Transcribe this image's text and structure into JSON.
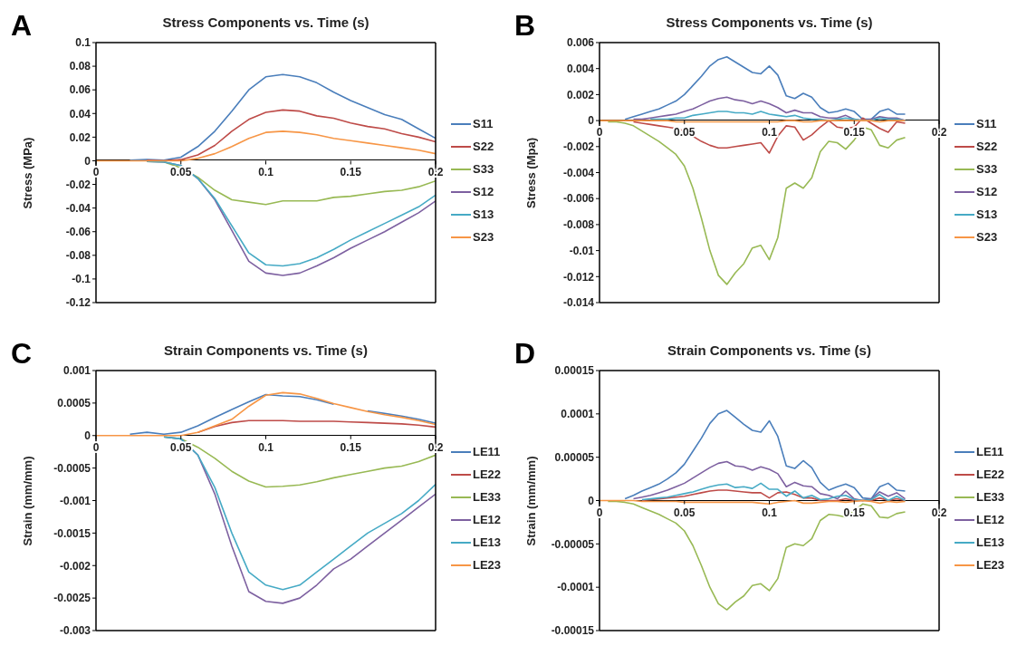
{
  "chart_data": [
    {
      "type": "line",
      "title": "Stress Components vs. Time (s)",
      "ylabel": "Stress (MPa)",
      "annotations": [
        "A"
      ],
      "legend": "right",
      "xlim": [
        0,
        0.2
      ],
      "xticks": [
        0,
        0.05,
        0.1,
        0.15,
        0.2
      ],
      "ylim": [
        -0.12,
        0.1
      ],
      "yticks": [
        -0.12,
        -0.1,
        -0.08,
        -0.06,
        -0.04,
        -0.02,
        0,
        0.02,
        0.04,
        0.06,
        0.08,
        0.1
      ],
      "x": [
        0,
        0.01,
        0.02,
        0.03,
        0.04,
        0.05,
        0.06,
        0.07,
        0.08,
        0.09,
        0.1,
        0.11,
        0.12,
        0.13,
        0.14,
        0.15,
        0.16,
        0.17,
        0.18,
        0.19,
        0.2
      ],
      "series": [
        {
          "name": "S11",
          "color": "#4a7ebb",
          "values": [
            null,
            null,
            0.0005,
            0.001,
            0.0005,
            0.003,
            0.012,
            0.025,
            0.042,
            0.06,
            0.071,
            0.073,
            0.071,
            0.066,
            0.058,
            0.051,
            0.045,
            0.039,
            0.035,
            0.027,
            0.019
          ]
        },
        {
          "name": "S22",
          "color": "#be4b48",
          "values": [
            null,
            null,
            null,
            0.0005,
            0,
            0.001,
            0.005,
            0.013,
            0.025,
            0.035,
            0.041,
            0.043,
            0.042,
            0.038,
            0.036,
            0.032,
            0.029,
            0.027,
            0.023,
            0.02,
            0.016
          ]
        },
        {
          "name": "S33",
          "color": "#98b954",
          "values": [
            null,
            null,
            null,
            -0.0005,
            -0.001,
            -0.006,
            -0.014,
            -0.025,
            -0.033,
            -0.035,
            -0.037,
            -0.034,
            -0.034,
            -0.034,
            -0.031,
            -0.03,
            -0.028,
            -0.026,
            -0.025,
            -0.022,
            -0.017
          ]
        },
        {
          "name": "S12",
          "color": "#7d60a0",
          "values": [
            null,
            null,
            null,
            -0.0005,
            -0.001,
            -0.004,
            -0.015,
            -0.033,
            -0.059,
            -0.085,
            -0.095,
            -0.097,
            -0.095,
            -0.089,
            -0.082,
            -0.074,
            -0.067,
            -0.06,
            -0.052,
            -0.044,
            -0.034
          ]
        },
        {
          "name": "S13",
          "color": "#46aac5",
          "values": [
            null,
            null,
            null,
            -0.0005,
            -0.001,
            -0.004,
            -0.015,
            -0.032,
            -0.055,
            -0.078,
            -0.088,
            -0.089,
            -0.087,
            -0.082,
            -0.075,
            -0.067,
            -0.06,
            -0.053,
            -0.046,
            -0.039,
            -0.029
          ]
        },
        {
          "name": "S23",
          "color": "#f79646",
          "values": [
            0,
            0,
            0,
            0,
            0,
            0,
            0.002,
            0.006,
            0.012,
            0.019,
            0.024,
            0.025,
            0.024,
            0.022,
            0.019,
            0.017,
            0.015,
            0.013,
            0.011,
            0.009,
            0.006
          ]
        }
      ]
    },
    {
      "type": "line",
      "title": "Stress Components vs. Time (s)",
      "ylabel": "Stress (Mpa)",
      "annotations": [
        "B"
      ],
      "legend": "right",
      "xlim": [
        0,
        0.2
      ],
      "xticks": [
        0,
        0.05,
        0.1,
        0.15,
        0.2
      ],
      "ylim": [
        -0.014,
        0.006
      ],
      "yticks": [
        -0.014,
        -0.012,
        -0.01,
        -0.008,
        -0.006,
        -0.004,
        -0.002,
        0,
        0.002,
        0.004,
        0.006
      ],
      "x": [
        0,
        0.005,
        0.01,
        0.015,
        0.02,
        0.025,
        0.03,
        0.035,
        0.04,
        0.045,
        0.05,
        0.055,
        0.06,
        0.065,
        0.07,
        0.075,
        0.08,
        0.085,
        0.09,
        0.095,
        0.1,
        0.105,
        0.11,
        0.115,
        0.12,
        0.125,
        0.13,
        0.135,
        0.14,
        0.145,
        0.15,
        0.155,
        0.16,
        0.165,
        0.17,
        0.175,
        0.18
      ],
      "series": [
        {
          "name": "S11",
          "color": "#4a7ebb",
          "values": [
            null,
            null,
            null,
            0.0001,
            0.0003,
            0.0005,
            0.0007,
            0.0009,
            0.0012,
            0.0015,
            0.002,
            0.0027,
            0.0034,
            0.0042,
            0.0047,
            0.0049,
            0.0045,
            0.0041,
            0.0037,
            0.0036,
            0.0042,
            0.0035,
            0.0019,
            0.0017,
            0.0021,
            0.0018,
            0.001,
            0.0006,
            0.0007,
            0.0009,
            0.0007,
            0.0001,
            0.0001,
            0.0007,
            0.0009,
            0.0005,
            0.0005
          ]
        },
        {
          "name": "S22",
          "color": "#be4b48",
          "values": [
            null,
            null,
            null,
            null,
            -0.0001,
            -0.0002,
            -0.0003,
            -0.0004,
            -0.0005,
            -0.0006,
            -0.0008,
            -0.0012,
            -0.0016,
            -0.0019,
            -0.0021,
            -0.0021,
            -0.002,
            -0.0019,
            -0.0018,
            -0.0017,
            -0.0025,
            -0.0012,
            -0.0004,
            -0.0005,
            -0.0015,
            -0.0011,
            -0.0005,
            0,
            -0.0005,
            -0.0006,
            -0.0005,
            0.0002,
            -0.0002,
            -0.0006,
            -0.0009,
            -0.0001,
            -0.0002
          ]
        },
        {
          "name": "S33",
          "color": "#98b954",
          "values": [
            null,
            -0.0001,
            -0.0001,
            -0.0002,
            -0.0004,
            -0.0008,
            -0.0012,
            -0.0016,
            -0.0021,
            -0.0026,
            -0.0035,
            -0.0052,
            -0.0075,
            -0.01,
            -0.0119,
            -0.0126,
            -0.0117,
            -0.011,
            -0.0098,
            -0.0096,
            -0.0107,
            -0.009,
            -0.0052,
            -0.0048,
            -0.0052,
            -0.0044,
            -0.0024,
            -0.0016,
            -0.0017,
            -0.0022,
            -0.0015,
            -0.0005,
            -0.0007,
            -0.0019,
            -0.0021,
            -0.0015,
            -0.0013
          ]
        },
        {
          "name": "S12",
          "color": "#7d60a0",
          "values": [
            null,
            null,
            null,
            null,
            0.0001,
            0.0001,
            0.0002,
            0.0003,
            0.0004,
            0.0005,
            0.0007,
            0.0009,
            0.0012,
            0.0015,
            0.0017,
            0.0018,
            0.0016,
            0.0015,
            0.0013,
            0.0015,
            0.0013,
            0.001,
            0.0006,
            0.0008,
            0.0006,
            0.0006,
            0.0003,
            0.0002,
            0.0002,
            0.0004,
            0.0001,
            0,
            0.0001,
            0.0003,
            0.0002,
            0.0002,
            0
          ]
        },
        {
          "name": "S13",
          "color": "#46aac5",
          "values": [
            null,
            null,
            null,
            null,
            null,
            null,
            0.0001,
            0.0001,
            0.0001,
            0.0002,
            0.0002,
            0.0004,
            0.0005,
            0.0006,
            0.0007,
            0.0007,
            0.0006,
            0.0006,
            0.0005,
            0.0007,
            0.0005,
            0.0004,
            0.0003,
            0.0004,
            0.0002,
            0.0001,
            0.0001,
            0,
            0.0001,
            0.0002,
            0.0001,
            0,
            0,
            0.0002,
            0.0001,
            0.0001,
            0
          ]
        },
        {
          "name": "S23",
          "color": "#f79646",
          "values": [
            0,
            0,
            0,
            0,
            0,
            0,
            0,
            0,
            0,
            -0.0001,
            -0.0001,
            -0.0001,
            -0.0001,
            -0.0001,
            -0.0001,
            -0.0001,
            -0.0001,
            -0.0001,
            -0.0001,
            -0.0001,
            -0.0001,
            -0.0001,
            0,
            0,
            -0.0001,
            -0.0001,
            0,
            0,
            0,
            0,
            0,
            0,
            0,
            -0.0001,
            0,
            0,
            0
          ]
        }
      ]
    },
    {
      "type": "line",
      "title": "Strain Components vs. Time (s)",
      "ylabel": "Strain (mm/mm)",
      "annotations": [
        "C"
      ],
      "legend": "right",
      "xlim": [
        0,
        0.2
      ],
      "xticks": [
        0,
        0.05,
        0.1,
        0.15,
        0.2
      ],
      "ylim": [
        -0.003,
        0.001
      ],
      "yticks": [
        -0.003,
        -0.0025,
        -0.002,
        -0.0015,
        -0.001,
        -0.0005,
        0,
        0.0005,
        0.001
      ],
      "x": [
        0,
        0.01,
        0.02,
        0.03,
        0.04,
        0.05,
        0.06,
        0.07,
        0.08,
        0.09,
        0.1,
        0.11,
        0.12,
        0.13,
        0.14,
        0.15,
        0.16,
        0.17,
        0.18,
        0.19,
        0.2
      ],
      "series": [
        {
          "name": "LE11",
          "color": "#4a7ebb",
          "values": [
            null,
            null,
            2e-05,
            5e-05,
            2e-05,
            5e-05,
            0.00015,
            0.00028,
            0.0004,
            0.00052,
            0.00063,
            0.00061,
            0.0006,
            0.00055,
            0.00048,
            null,
            0.00038,
            0.00034,
            0.0003,
            0.00025,
            0.00019
          ]
        },
        {
          "name": "LE22",
          "color": "#be4b48",
          "values": [
            null,
            null,
            null,
            null,
            null,
            null,
            5e-05,
            0.00014,
            0.0002,
            0.00023,
            0.00023,
            0.00023,
            0.00022,
            0.00022,
            0.00022,
            0.00021,
            0.0002,
            0.00019,
            0.00018,
            0.00016,
            0.00013
          ]
        },
        {
          "name": "LE33",
          "color": "#98b954",
          "values": [
            null,
            null,
            null,
            null,
            -2e-05,
            -5e-05,
            -0.00018,
            -0.00035,
            -0.00055,
            -0.0007,
            -0.00079,
            -0.00078,
            -0.00076,
            -0.00071,
            -0.00065,
            -0.0006,
            -0.00055,
            -0.0005,
            -0.00047,
            -0.0004,
            -0.0003
          ]
        },
        {
          "name": "LE12",
          "color": "#7d60a0",
          "values": [
            null,
            null,
            null,
            null,
            -2e-05,
            -5e-05,
            -0.0003,
            -0.0009,
            -0.0017,
            -0.0024,
            -0.00255,
            -0.00258,
            -0.0025,
            -0.0023,
            -0.00205,
            -0.0019,
            -0.0017,
            -0.0015,
            -0.0013,
            -0.0011,
            -0.0009
          ]
        },
        {
          "name": "LE13",
          "color": "#46aac5",
          "values": [
            null,
            null,
            null,
            null,
            -2e-05,
            -5e-05,
            -0.0003,
            -0.0008,
            -0.0015,
            -0.0021,
            -0.0023,
            -0.00237,
            -0.0023,
            -0.0021,
            -0.0019,
            -0.0017,
            -0.0015,
            -0.00135,
            -0.0012,
            -0.001,
            -0.00075
          ]
        },
        {
          "name": "LE23",
          "color": "#f79646",
          "values": [
            0,
            0,
            0,
            0,
            0,
            0,
            5e-05,
            0.00015,
            0.00025,
            0.00045,
            0.00062,
            0.00066,
            0.00064,
            0.00057,
            0.00049,
            0.00043,
            0.00037,
            0.00032,
            0.00028,
            0.00023,
            0.00017
          ]
        }
      ]
    },
    {
      "type": "line",
      "title": "Strain Components vs. Time (s)",
      "ylabel": "Strain (mm/mm)",
      "annotations": [
        "D"
      ],
      "legend": "right",
      "xlim": [
        0,
        0.2
      ],
      "xticks": [
        0,
        0.05,
        0.1,
        0.15,
        0.2
      ],
      "ylim": [
        -0.00015,
        0.00015
      ],
      "yticks": [
        -0.00015,
        -0.0001,
        {
          "value": -5e-05,
          "label": "-0.00005"
        },
        0,
        {
          "value": 5e-05,
          "label": "0.00005"
        },
        0.0001,
        0.00015
      ],
      "x": [
        0,
        0.005,
        0.01,
        0.015,
        0.02,
        0.025,
        0.03,
        0.035,
        0.04,
        0.045,
        0.05,
        0.055,
        0.06,
        0.065,
        0.07,
        0.075,
        0.08,
        0.085,
        0.09,
        0.095,
        0.1,
        0.105,
        0.11,
        0.115,
        0.12,
        0.125,
        0.13,
        0.135,
        0.14,
        0.145,
        0.15,
        0.155,
        0.16,
        0.165,
        0.17,
        0.175,
        0.18
      ],
      "series": [
        {
          "name": "LE11",
          "color": "#4a7ebb",
          "values": [
            null,
            null,
            null,
            2e-06,
            6e-06,
            1.1e-05,
            1.5e-05,
            1.9e-05,
            2.5e-05,
            3.2e-05,
            4.2e-05,
            5.7e-05,
            7.2e-05,
            8.9e-05,
            0.0001,
            0.000104,
            9.6e-05,
            8.8e-05,
            8.1e-05,
            7.9e-05,
            9.2e-05,
            7.4e-05,
            4e-05,
            3.7e-05,
            4.6e-05,
            3.8e-05,
            2.1e-05,
            1.2e-05,
            1.6e-05,
            1.9e-05,
            1.5e-05,
            3e-06,
            2e-06,
            1.6e-05,
            2e-05,
            1.2e-05,
            1.1e-05
          ]
        },
        {
          "name": "LE22",
          "color": "#be4b48",
          "values": [
            null,
            null,
            null,
            null,
            null,
            0,
            1e-06,
            2e-06,
            3e-06,
            4e-06,
            5e-06,
            7e-06,
            9e-06,
            1.1e-05,
            1.2e-05,
            1.2e-05,
            1.1e-05,
            1e-05,
            9e-06,
            9e-06,
            3e-06,
            9e-06,
            1e-05,
            7e-06,
            3e-06,
            3e-06,
            0,
            0,
            0,
            2e-06,
            0,
            0,
            0,
            3e-06,
            0,
            2e-06,
            0
          ]
        },
        {
          "name": "LE33",
          "color": "#98b954",
          "values": [
            null,
            -1e-06,
            -1e-06,
            -2e-06,
            -4e-06,
            -8e-06,
            -1.2e-05,
            -1.6e-05,
            -2.1e-05,
            -2.6e-05,
            -3.5e-05,
            -5.2e-05,
            -7.5e-05,
            -0.0001,
            -0.000119,
            -0.000126,
            -0.000117,
            -0.00011,
            -9.8e-05,
            -9.6e-05,
            -0.000104,
            -9e-05,
            -5.4e-05,
            -5e-05,
            -5.2e-05,
            -4.4e-05,
            -2.3e-05,
            -1.6e-05,
            -1.7e-05,
            -1.9e-05,
            -1.2e-05,
            -4e-06,
            -6e-06,
            -1.9e-05,
            -2e-05,
            -1.5e-05,
            -1.3e-05
          ]
        },
        {
          "name": "LE12",
          "color": "#7d60a0",
          "values": [
            null,
            null,
            null,
            null,
            2e-06,
            4e-06,
            6e-06,
            9e-06,
            1.2e-05,
            1.6e-05,
            2e-05,
            2.6e-05,
            3.2e-05,
            3.8e-05,
            4.3e-05,
            4.5e-05,
            4e-05,
            3.9e-05,
            3.5e-05,
            3.9e-05,
            3.6e-05,
            3.1e-05,
            1.6e-05,
            2.1e-05,
            1.7e-05,
            1.6e-05,
            8e-06,
            6e-06,
            2e-06,
            1.1e-05,
            2e-06,
            0,
            2e-06,
            1e-05,
            5e-06,
            9e-06,
            2e-06
          ]
        },
        {
          "name": "LE13",
          "color": "#46aac5",
          "values": [
            null,
            null,
            null,
            null,
            null,
            1e-06,
            2e-06,
            3e-06,
            4e-06,
            6e-06,
            8e-06,
            1e-05,
            1.3e-05,
            1.6e-05,
            1.8e-05,
            1.9e-05,
            1.5e-05,
            1.6e-05,
            1.4e-05,
            2e-05,
            1.3e-05,
            1.3e-05,
            5e-06,
            1.1e-05,
            3e-06,
            6e-06,
            1e-06,
            2e-06,
            5e-06,
            6e-06,
            1e-06,
            0,
            1e-06,
            7e-06,
            0,
            5e-06,
            0
          ]
        },
        {
          "name": "LE23",
          "color": "#f79646",
          "values": [
            0,
            0,
            0,
            0,
            0,
            -1e-06,
            -1e-06,
            -1e-06,
            -1e-06,
            -1e-06,
            -2e-06,
            -2e-06,
            -2e-06,
            -2e-06,
            -2e-06,
            -2e-06,
            -2e-06,
            -2e-06,
            -2e-06,
            -3e-06,
            -4e-06,
            -2e-06,
            -1e-06,
            0,
            -3e-06,
            -3e-06,
            -2e-06,
            -1e-06,
            -1e-06,
            -2e-06,
            -1e-06,
            0,
            -1e-06,
            -3e-06,
            -1e-06,
            -2e-06,
            -1e-06
          ]
        }
      ]
    }
  ]
}
